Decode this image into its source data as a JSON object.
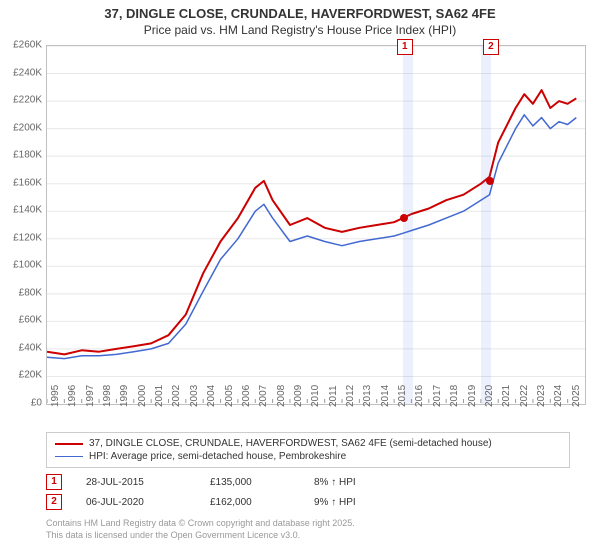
{
  "title_line1": "37, DINGLE CLOSE, CRUNDALE, HAVERFORDWEST, SA62 4FE",
  "title_line2": "Price paid vs. HM Land Registry's House Price Index (HPI)",
  "chart": {
    "type": "line",
    "background_color": "#ffffff",
    "border_color": "#c0c0c0",
    "grid_color": "#e8e8e8",
    "ylim": [
      0,
      260000
    ],
    "ytick_step": 20000,
    "y_tick_labels": [
      "£0",
      "£20K",
      "£40K",
      "£60K",
      "£80K",
      "£100K",
      "£120K",
      "£140K",
      "£160K",
      "£180K",
      "£200K",
      "£220K",
      "£240K",
      "£260K"
    ],
    "xlim": [
      1995,
      2026
    ],
    "x_ticks": [
      1995,
      1996,
      1997,
      1998,
      1999,
      2000,
      2001,
      2002,
      2003,
      2004,
      2005,
      2006,
      2007,
      2008,
      2009,
      2010,
      2011,
      2012,
      2013,
      2014,
      2015,
      2016,
      2017,
      2018,
      2019,
      2020,
      2021,
      2022,
      2023,
      2024,
      2025
    ],
    "series": [
      {
        "id": "price_paid",
        "label": "37, DINGLE CLOSE, CRUNDALE, HAVERFORDWEST, SA62 4FE (semi-detached house)",
        "color": "#cc0000",
        "line_width": 2,
        "points": [
          [
            1995,
            38000
          ],
          [
            1996,
            36000
          ],
          [
            1997,
            39000
          ],
          [
            1998,
            38000
          ],
          [
            1999,
            40000
          ],
          [
            2000,
            42000
          ],
          [
            2001,
            44000
          ],
          [
            2002,
            50000
          ],
          [
            2003,
            65000
          ],
          [
            2004,
            95000
          ],
          [
            2005,
            118000
          ],
          [
            2006,
            135000
          ],
          [
            2007,
            157000
          ],
          [
            2007.5,
            162000
          ],
          [
            2008,
            148000
          ],
          [
            2009,
            130000
          ],
          [
            2010,
            135000
          ],
          [
            2011,
            128000
          ],
          [
            2012,
            125000
          ],
          [
            2013,
            128000
          ],
          [
            2014,
            130000
          ],
          [
            2015,
            132000
          ],
          [
            2015.5,
            135000
          ],
          [
            2016,
            138000
          ],
          [
            2017,
            142000
          ],
          [
            2018,
            148000
          ],
          [
            2019,
            152000
          ],
          [
            2020,
            160000
          ],
          [
            2020.5,
            165000
          ],
          [
            2021,
            190000
          ],
          [
            2022,
            215000
          ],
          [
            2022.5,
            225000
          ],
          [
            2023,
            218000
          ],
          [
            2023.5,
            228000
          ],
          [
            2024,
            215000
          ],
          [
            2024.5,
            220000
          ],
          [
            2025,
            218000
          ],
          [
            2025.5,
            222000
          ]
        ]
      },
      {
        "id": "hpi",
        "label": "HPI: Average price, semi-detached house, Pembrokeshire",
        "color": "#4169d1",
        "line_width": 1.5,
        "points": [
          [
            1995,
            34000
          ],
          [
            1996,
            33000
          ],
          [
            1997,
            35000
          ],
          [
            1998,
            35000
          ],
          [
            1999,
            36000
          ],
          [
            2000,
            38000
          ],
          [
            2001,
            40000
          ],
          [
            2002,
            44000
          ],
          [
            2003,
            58000
          ],
          [
            2004,
            82000
          ],
          [
            2005,
            105000
          ],
          [
            2006,
            120000
          ],
          [
            2007,
            140000
          ],
          [
            2007.5,
            145000
          ],
          [
            2008,
            135000
          ],
          [
            2009,
            118000
          ],
          [
            2010,
            122000
          ],
          [
            2011,
            118000
          ],
          [
            2012,
            115000
          ],
          [
            2013,
            118000
          ],
          [
            2014,
            120000
          ],
          [
            2015,
            122000
          ],
          [
            2015.5,
            124000
          ],
          [
            2016,
            126000
          ],
          [
            2017,
            130000
          ],
          [
            2018,
            135000
          ],
          [
            2019,
            140000
          ],
          [
            2020,
            148000
          ],
          [
            2020.5,
            152000
          ],
          [
            2021,
            175000
          ],
          [
            2022,
            200000
          ],
          [
            2022.5,
            210000
          ],
          [
            2023,
            202000
          ],
          [
            2023.5,
            208000
          ],
          [
            2024,
            200000
          ],
          [
            2024.5,
            205000
          ],
          [
            2025,
            203000
          ],
          [
            2025.5,
            208000
          ]
        ]
      }
    ],
    "shaded_regions": [
      {
        "from": 2015.5,
        "to": 2016.1
      },
      {
        "from": 2020.0,
        "to": 2020.6
      }
    ],
    "sale_markers": [
      {
        "num": "1",
        "year": 2015.56,
        "value": 135000,
        "color": "#cc0000",
        "label_x": 2015.56
      },
      {
        "num": "2",
        "year": 2020.52,
        "value": 162000,
        "color": "#cc0000",
        "label_x": 2020.52
      }
    ],
    "axis_fontsize": 10,
    "axis_color": "#666666"
  },
  "legend": {
    "items": [
      {
        "color": "#cc0000",
        "width": 2,
        "text": "37, DINGLE CLOSE, CRUNDALE, HAVERFORDWEST, SA62 4FE (semi-detached house)"
      },
      {
        "color": "#4169d1",
        "width": 1.5,
        "text": "HPI: Average price, semi-detached house, Pembrokeshire"
      }
    ]
  },
  "sales_table": [
    {
      "num": "1",
      "date": "28-JUL-2015",
      "price": "£135,000",
      "diff": "8% ↑ HPI"
    },
    {
      "num": "2",
      "date": "06-JUL-2020",
      "price": "£162,000",
      "diff": "9% ↑ HPI"
    }
  ],
  "footnote_line1": "Contains HM Land Registry data © Crown copyright and database right 2025.",
  "footnote_line2": "This data is licensed under the Open Government Licence v3.0."
}
